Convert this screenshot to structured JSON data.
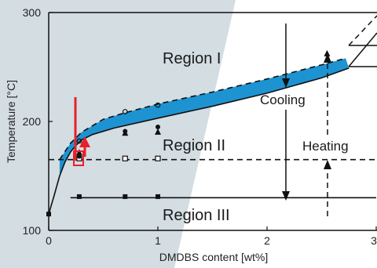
{
  "chart_data": {
    "type": "line",
    "title": "",
    "xlabel": "DMDBS content [wt%]",
    "ylabel": "Temperature [°C]",
    "xlim": [
      0,
      3
    ],
    "ylim": [
      100,
      300
    ],
    "x_ticks": [
      "0",
      "1",
      "2",
      "3"
    ],
    "y_ticks": [
      "100",
      "200",
      "300"
    ],
    "colors": {
      "background_shade": "#d3dde2",
      "band_fill": "#1e93d2",
      "marker_line": "#e8202a",
      "lines": "#111111"
    },
    "regions": [
      {
        "label": "Region I",
        "x": 1.35,
        "y": 255
      },
      {
        "label": "Region II",
        "x": 1.35,
        "y": 179
      },
      {
        "label": "Region III",
        "x": 1.35,
        "y": 116
      }
    ],
    "annotations": [
      {
        "label": "Cooling",
        "x": 2.12,
        "y": 215
      },
      {
        "label": "Heating",
        "x": 2.55,
        "y": 179
      }
    ],
    "series": [
      {
        "name": "",
        "style": "solid",
        "points": [
          [
            0.0,
            115
          ],
          [
            0.05,
            132
          ],
          [
            0.1,
            150
          ],
          [
            0.15,
            163
          ],
          [
            0.2,
            172
          ],
          [
            0.25,
            178
          ],
          [
            0.3,
            183
          ],
          [
            0.4,
            188
          ],
          [
            0.6,
            194
          ],
          [
            1.0,
            203
          ],
          [
            1.5,
            214
          ],
          [
            2.0,
            226
          ],
          [
            2.5,
            240
          ],
          [
            2.75,
            249
          ]
        ]
      },
      {
        "name": "",
        "style": "dashed",
        "points": [
          [
            0.1,
            165
          ],
          [
            0.2,
            180
          ],
          [
            0.3,
            190
          ],
          [
            0.5,
            202
          ],
          [
            0.7,
            208
          ],
          [
            1.0,
            216
          ],
          [
            1.5,
            227
          ],
          [
            2.0,
            239
          ],
          [
            2.5,
            252
          ],
          [
            2.72,
            258
          ]
        ]
      },
      {
        "name": "",
        "style": "dashed",
        "points": [
          [
            0.0,
            165
          ],
          [
            3.0,
            165
          ]
        ]
      },
      {
        "name": "",
        "style": "solid",
        "points": [
          [
            0.2,
            130
          ],
          [
            3.0,
            130
          ]
        ]
      }
    ],
    "markers": {
      "filled_square": [
        [
          0.0,
          115
        ],
        [
          0.28,
          131
        ],
        [
          0.7,
          131
        ],
        [
          1.0,
          131
        ]
      ],
      "open_square": [
        [
          0.28,
          166
        ],
        [
          0.7,
          166
        ],
        [
          1.0,
          166
        ]
      ],
      "filled_triangle": [
        [
          0.28,
          171
        ],
        [
          0.7,
          189
        ],
        [
          1.0,
          190
        ],
        [
          2.55,
          262
        ]
      ],
      "filled_circle": [
        [
          0.28,
          168
        ],
        [
          0.7,
          191
        ],
        [
          1.0,
          195
        ]
      ],
      "open_circle": [
        [
          0.28,
          182
        ],
        [
          0.7,
          209
        ],
        [
          1.0,
          215
        ]
      ]
    }
  }
}
